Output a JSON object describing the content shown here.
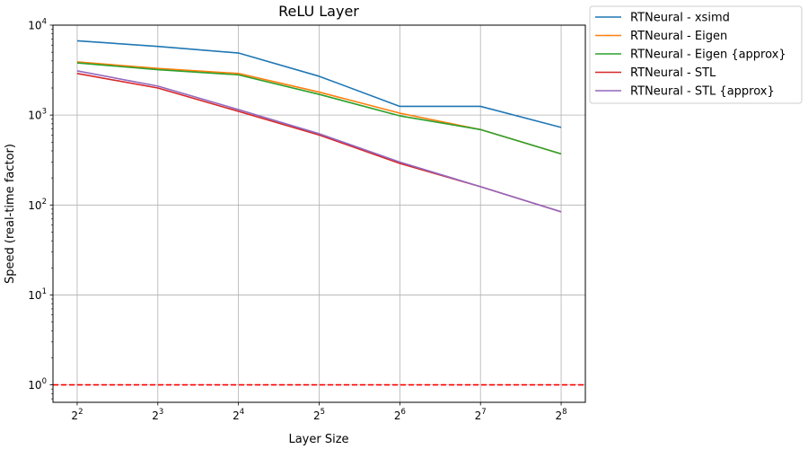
{
  "chart_data": {
    "type": "line",
    "title": "ReLU Layer",
    "xlabel": "Layer Size",
    "ylabel": "Speed (real-time factor)",
    "x_scale": "log2",
    "y_scale": "log10",
    "x": [
      4,
      8,
      16,
      32,
      64,
      128,
      256
    ],
    "x_tick_labels": [
      {
        "base": "2",
        "exp": "2"
      },
      {
        "base": "2",
        "exp": "3"
      },
      {
        "base": "2",
        "exp": "4"
      },
      {
        "base": "2",
        "exp": "5"
      },
      {
        "base": "2",
        "exp": "6"
      },
      {
        "base": "2",
        "exp": "7"
      },
      {
        "base": "2",
        "exp": "8"
      }
    ],
    "y_tick_labels": [
      {
        "value": 1,
        "base": "10",
        "exp": "0"
      },
      {
        "value": 10,
        "base": "10",
        "exp": "1"
      },
      {
        "value": 100,
        "base": "10",
        "exp": "2"
      },
      {
        "value": 1000,
        "base": "10",
        "exp": "3"
      },
      {
        "value": 10000,
        "base": "10",
        "exp": "4"
      }
    ],
    "ylim": [
      0.64,
      10000
    ],
    "xlim_log2": [
      1.7,
      8.3
    ],
    "grid": true,
    "legend_placement": "outside-top-right",
    "reference_line": {
      "y": 1,
      "color": "#ff0000",
      "style": "dashed"
    },
    "series": [
      {
        "name": "RTNeural - xsimd",
        "color": "#1f77b4",
        "values": [
          6700,
          5800,
          4900,
          2700,
          1250,
          1250,
          730
        ]
      },
      {
        "name": "RTNeural - Eigen",
        "color": "#ff7f0e",
        "values": [
          3900,
          3300,
          2900,
          1800,
          1050,
          690,
          370
        ]
      },
      {
        "name": "RTNeural - Eigen {approx}",
        "color": "#2ca02c",
        "values": [
          3800,
          3200,
          2800,
          1700,
          980,
          690,
          370
        ]
      },
      {
        "name": "RTNeural - STL",
        "color": "#d62728",
        "values": [
          2900,
          2000,
          1100,
          600,
          290,
          160,
          84
        ]
      },
      {
        "name": "RTNeural - STL {approx}",
        "color": "#9467bd",
        "values": [
          3100,
          2100,
          1150,
          620,
          300,
          160,
          84
        ]
      }
    ]
  }
}
